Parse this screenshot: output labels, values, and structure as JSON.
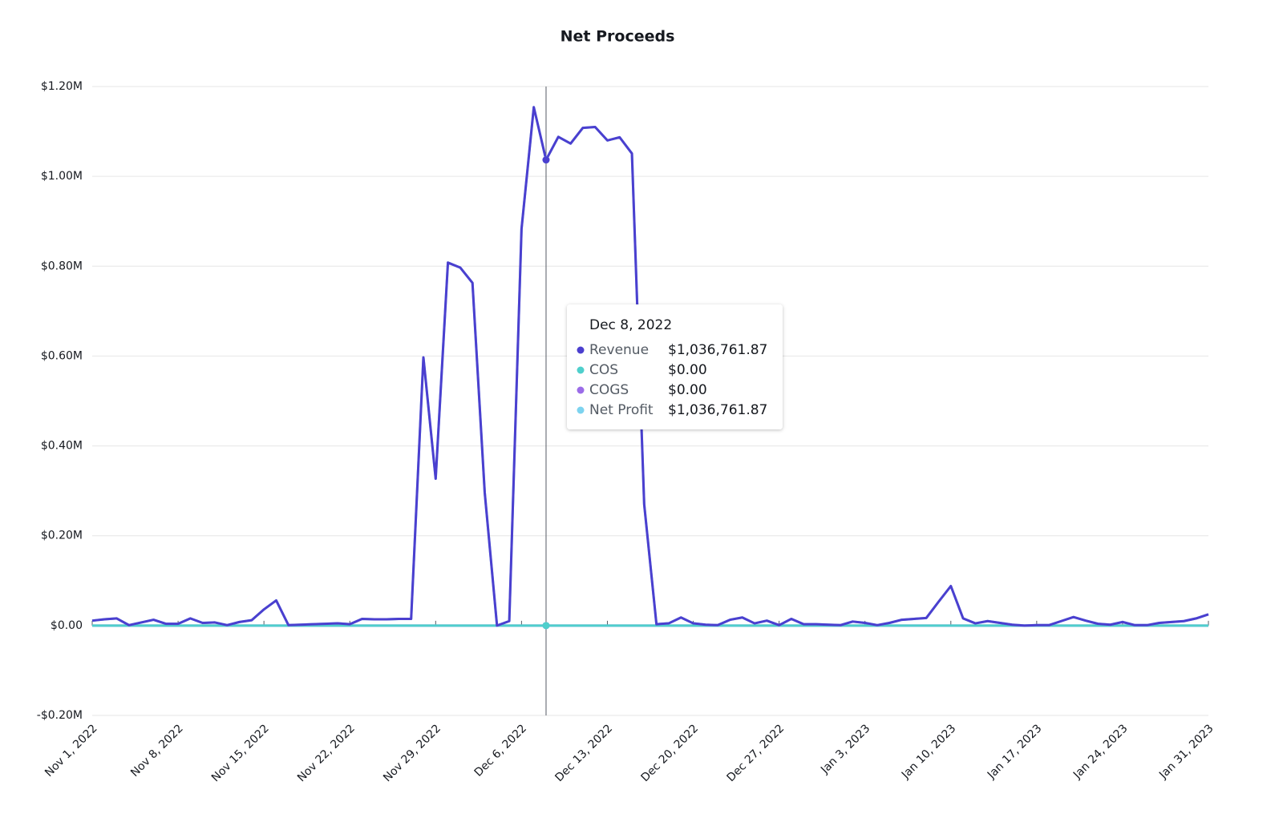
{
  "chart_data": {
    "type": "line",
    "title": "Net Proceeds",
    "x": [
      "2022-11-01",
      "2022-11-02",
      "2022-11-03",
      "2022-11-04",
      "2022-11-05",
      "2022-11-06",
      "2022-11-07",
      "2022-11-08",
      "2022-11-09",
      "2022-11-10",
      "2022-11-11",
      "2022-11-12",
      "2022-11-13",
      "2022-11-14",
      "2022-11-15",
      "2022-11-16",
      "2022-11-17",
      "2022-11-18",
      "2022-11-19",
      "2022-11-20",
      "2022-11-21",
      "2022-11-22",
      "2022-11-23",
      "2022-11-24",
      "2022-11-25",
      "2022-11-26",
      "2022-11-27",
      "2022-11-28",
      "2022-11-29",
      "2022-11-30",
      "2022-12-01",
      "2022-12-02",
      "2022-12-03",
      "2022-12-04",
      "2022-12-05",
      "2022-12-06",
      "2022-12-07",
      "2022-12-08",
      "2022-12-09",
      "2022-12-10",
      "2022-12-11",
      "2022-12-12",
      "2022-12-13",
      "2022-12-14",
      "2022-12-15",
      "2022-12-16",
      "2022-12-17",
      "2022-12-18",
      "2022-12-19",
      "2022-12-20",
      "2022-12-21",
      "2022-12-22",
      "2022-12-23",
      "2022-12-24",
      "2022-12-25",
      "2022-12-26",
      "2022-12-27",
      "2022-12-28",
      "2022-12-29",
      "2022-12-30",
      "2022-12-31",
      "2023-01-01",
      "2023-01-02",
      "2023-01-03",
      "2023-01-04",
      "2023-01-05",
      "2023-01-06",
      "2023-01-07",
      "2023-01-08",
      "2023-01-09",
      "2023-01-10",
      "2023-01-11",
      "2023-01-12",
      "2023-01-13",
      "2023-01-14",
      "2023-01-15",
      "2023-01-16",
      "2023-01-17",
      "2023-01-18",
      "2023-01-19",
      "2023-01-20",
      "2023-01-21",
      "2023-01-22",
      "2023-01-23",
      "2023-01-24",
      "2023-01-25",
      "2023-01-26",
      "2023-01-27",
      "2023-01-28",
      "2023-01-29",
      "2023-01-30",
      "2023-01-31"
    ],
    "xlim": [
      "2022-11-01",
      "2023-01-31"
    ],
    "xticks": [
      {
        "value": "2022-11-01",
        "label": "Nov 1, 2022"
      },
      {
        "value": "2022-11-08",
        "label": "Nov 8, 2022"
      },
      {
        "value": "2022-11-15",
        "label": "Nov 15, 2022"
      },
      {
        "value": "2022-11-22",
        "label": "Nov 22, 2022"
      },
      {
        "value": "2022-11-29",
        "label": "Nov 29, 2022"
      },
      {
        "value": "2022-12-06",
        "label": "Dec 6, 2022"
      },
      {
        "value": "2022-12-13",
        "label": "Dec 13, 2022"
      },
      {
        "value": "2022-12-20",
        "label": "Dec 20, 2022"
      },
      {
        "value": "2022-12-27",
        "label": "Dec 27, 2022"
      },
      {
        "value": "2023-01-03",
        "label": "Jan 3, 2023"
      },
      {
        "value": "2023-01-10",
        "label": "Jan 10, 2023"
      },
      {
        "value": "2023-01-17",
        "label": "Jan 17, 2023"
      },
      {
        "value": "2023-01-24",
        "label": "Jan 24, 2023"
      },
      {
        "value": "2023-01-31",
        "label": "Jan 31, 2023"
      }
    ],
    "ylim": [
      -200000,
      1200000
    ],
    "yticks": [
      {
        "value": -200000,
        "label": "-$0.20M"
      },
      {
        "value": 0,
        "label": "$0.00"
      },
      {
        "value": 200000,
        "label": "$0.20M"
      },
      {
        "value": 400000,
        "label": "$0.40M"
      },
      {
        "value": 600000,
        "label": "$0.60M"
      },
      {
        "value": 800000,
        "label": "$0.80M"
      },
      {
        "value": 1000000,
        "label": "$1.00M"
      },
      {
        "value": 1200000,
        "label": "$1.20M"
      }
    ],
    "grid": true,
    "series": [
      {
        "name": "Revenue",
        "color": "#4b3fcf",
        "values": [
          11000,
          14000,
          16000,
          1000,
          7000,
          13000,
          4000,
          4000,
          16000,
          6000,
          7000,
          1000,
          8000,
          12000,
          36000,
          56000,
          1000,
          2000,
          3000,
          4000,
          5000,
          3000,
          15000,
          14000,
          14000,
          15000,
          15000,
          597000,
          327000,
          808000,
          797000,
          763000,
          296000,
          0,
          10000,
          883000,
          1154000,
          1036761.87,
          1088000,
          1073000,
          1108000,
          1110000,
          1080000,
          1087000,
          1051000,
          270000,
          3000,
          5000,
          18000,
          5000,
          2000,
          1000,
          13000,
          18000,
          5000,
          11000,
          1000,
          15000,
          3000,
          3000,
          2000,
          1000,
          9000,
          6000,
          1000,
          6000,
          13000,
          15000,
          17000,
          53000,
          88000,
          16000,
          5000,
          10000,
          6000,
          2000,
          0,
          1000,
          1000,
          10000,
          19000,
          11000,
          4000,
          2000,
          8000,
          1000,
          1000,
          6000,
          8000,
          10000,
          16000,
          25000
        ]
      },
      {
        "name": "COS",
        "color": "#4fcfcc",
        "values": [
          0,
          0,
          0,
          0,
          0,
          0,
          0,
          0,
          0,
          0,
          0,
          0,
          0,
          0,
          0,
          0,
          0,
          0,
          0,
          0,
          0,
          0,
          0,
          0,
          0,
          0,
          0,
          0,
          0,
          0,
          0,
          0,
          0,
          0,
          0,
          0,
          0,
          0,
          0,
          0,
          0,
          0,
          0,
          0,
          0,
          0,
          0,
          0,
          0,
          0,
          0,
          0,
          0,
          0,
          0,
          0,
          0,
          0,
          0,
          0,
          0,
          0,
          0,
          0,
          0,
          0,
          0,
          0,
          0,
          0,
          0,
          0,
          0,
          0,
          0,
          0,
          0,
          0,
          0,
          0,
          0,
          0,
          0,
          0,
          0,
          0,
          0,
          0,
          0,
          0,
          0,
          0
        ]
      },
      {
        "name": "COGS",
        "color": "#9b6ce8",
        "values": [
          0,
          0,
          0,
          0,
          0,
          0,
          0,
          0,
          0,
          0,
          0,
          0,
          0,
          0,
          0,
          0,
          0,
          0,
          0,
          0,
          0,
          0,
          0,
          0,
          0,
          0,
          0,
          0,
          0,
          0,
          0,
          0,
          0,
          0,
          0,
          0,
          0,
          0,
          0,
          0,
          0,
          0,
          0,
          0,
          0,
          0,
          0,
          0,
          0,
          0,
          0,
          0,
          0,
          0,
          0,
          0,
          0,
          0,
          0,
          0,
          0,
          0,
          0,
          0,
          0,
          0,
          0,
          0,
          0,
          0,
          0,
          0,
          0,
          0,
          0,
          0,
          0,
          0,
          0,
          0,
          0,
          0,
          0,
          0,
          0,
          0,
          0,
          0,
          0,
          0,
          0,
          0
        ]
      },
      {
        "name": "Net Profit",
        "color": "#7dd3ef",
        "values": [
          11000,
          14000,
          16000,
          1000,
          7000,
          13000,
          4000,
          4000,
          16000,
          6000,
          7000,
          1000,
          8000,
          12000,
          36000,
          56000,
          1000,
          2000,
          3000,
          4000,
          5000,
          3000,
          15000,
          14000,
          14000,
          15000,
          15000,
          597000,
          327000,
          808000,
          797000,
          763000,
          296000,
          0,
          10000,
          883000,
          1154000,
          1036761.87,
          1088000,
          1073000,
          1108000,
          1110000,
          1080000,
          1087000,
          1051000,
          270000,
          3000,
          5000,
          18000,
          5000,
          2000,
          1000,
          13000,
          18000,
          5000,
          11000,
          1000,
          15000,
          3000,
          3000,
          2000,
          1000,
          9000,
          6000,
          1000,
          6000,
          13000,
          15000,
          17000,
          53000,
          88000,
          16000,
          5000,
          10000,
          6000,
          2000,
          0,
          1000,
          1000,
          10000,
          19000,
          11000,
          4000,
          2000,
          8000,
          1000,
          1000,
          6000,
          8000,
          10000,
          16000,
          25000
        ]
      }
    ],
    "tooltip": {
      "x": "2022-12-08",
      "title": "Dec 8, 2022",
      "value_labels": [
        "$1,036,761.87",
        "$0.00",
        "$0.00",
        "$1,036,761.87"
      ]
    }
  }
}
